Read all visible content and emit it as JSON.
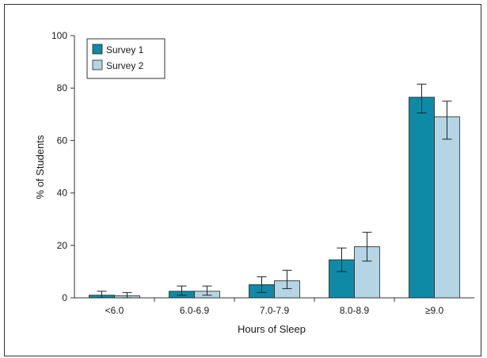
{
  "chart_data": {
    "type": "bar",
    "title": "",
    "xlabel": "Hours of Sleep",
    "ylabel": "% of Students",
    "categories": [
      "<6.0",
      "6.0-6.9",
      "7.0-7.9",
      "8.0-8.9",
      "≥9.0"
    ],
    "series": [
      {
        "name": "Survey 1",
        "color": "#0e8aa6",
        "values": [
          1.0,
          2.5,
          5.0,
          14.5,
          76.5
        ],
        "error_low": [
          0.0,
          1.0,
          2.0,
          10.0,
          70.5
        ],
        "error_high": [
          2.5,
          4.5,
          8.0,
          19.0,
          81.5
        ]
      },
      {
        "name": "Survey 2",
        "color": "#b4d5e3",
        "values": [
          0.8,
          2.5,
          6.5,
          19.5,
          69.0
        ],
        "error_low": [
          0.0,
          1.0,
          3.5,
          14.0,
          60.5
        ],
        "error_high": [
          2.0,
          4.5,
          10.5,
          25.0,
          75.0
        ]
      }
    ],
    "ylim": [
      0,
      100
    ],
    "yticks": [
      0,
      20,
      40,
      60,
      80,
      100
    ],
    "grid": false,
    "legend_position": "top-left"
  }
}
